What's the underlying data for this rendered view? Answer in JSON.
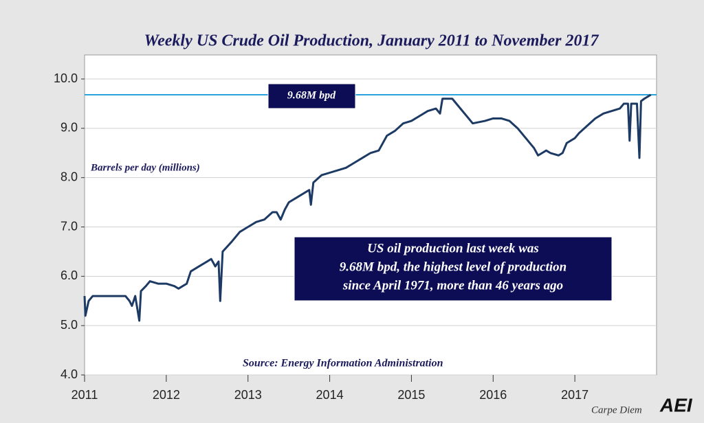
{
  "chart_data": {
    "type": "line",
    "title": "Weekly US Crude Oil Production, January 2011 to November 2017",
    "y_label": "Barrels per day (millions)",
    "source": "Source: Energy Information Administration",
    "reference_line": {
      "value": 9.68,
      "label": "9.68M bpd",
      "color": "#2aa3dc"
    },
    "annotation": [
      "US oil production last week was",
      "9.68M bpd, the highest level of production",
      "since April 1971, more than 46 years ago"
    ],
    "branding": [
      "Carpe Diem",
      "AEI"
    ],
    "xlim": [
      2011,
      2018
    ],
    "xticks": [
      2011,
      2012,
      2013,
      2014,
      2015,
      2016,
      2017
    ],
    "ylim": [
      4,
      10.5
    ],
    "yticks": [
      {
        "value": 4,
        "label": "4.0"
      },
      {
        "value": 5,
        "label": "5.0"
      },
      {
        "value": 6,
        "label": "6.0"
      },
      {
        "value": 7,
        "label": "7.0"
      },
      {
        "value": 8,
        "label": "8.0"
      },
      {
        "value": 9,
        "label": "9.0"
      },
      {
        "value": 10,
        "label": "10.0"
      }
    ],
    "grid": true,
    "x": [
      2011.0,
      2011.01,
      2011.05,
      2011.1,
      2011.2,
      2011.3,
      2011.4,
      2011.5,
      2011.55,
      2011.58,
      2011.62,
      2011.67,
      2011.69,
      2011.75,
      2011.8,
      2011.9,
      2012.0,
      2012.1,
      2012.15,
      2012.2,
      2012.25,
      2012.3,
      2012.4,
      2012.5,
      2012.55,
      2012.6,
      2012.64,
      2012.66,
      2012.69,
      2012.8,
      2012.9,
      2013.0,
      2013.1,
      2013.2,
      2013.3,
      2013.35,
      2013.4,
      2013.45,
      2013.5,
      2013.6,
      2013.75,
      2013.77,
      2013.8,
      2013.9,
      2014.0,
      2014.1,
      2014.2,
      2014.3,
      2014.4,
      2014.5,
      2014.6,
      2014.7,
      2014.8,
      2014.9,
      2015.0,
      2015.1,
      2015.2,
      2015.3,
      2015.35,
      2015.38,
      2015.5,
      2015.6,
      2015.7,
      2015.75,
      2015.9,
      2016.0,
      2016.1,
      2016.2,
      2016.3,
      2016.4,
      2016.45,
      2016.5,
      2016.55,
      2016.6,
      2016.65,
      2016.7,
      2016.8,
      2016.85,
      2016.9,
      2017.0,
      2017.05,
      2017.15,
      2017.25,
      2017.35,
      2017.45,
      2017.55,
      2017.6,
      2017.65,
      2017.67,
      2017.69,
      2017.76,
      2017.79,
      2017.81,
      2017.85,
      2017.93
    ],
    "series": [
      {
        "name": "Weekly US crude oil production",
        "color": "#1c3a63",
        "values": [
          5.6,
          5.2,
          5.5,
          5.6,
          5.6,
          5.6,
          5.6,
          5.6,
          5.5,
          5.4,
          5.6,
          5.1,
          5.7,
          5.8,
          5.9,
          5.85,
          5.85,
          5.8,
          5.75,
          5.8,
          5.85,
          6.1,
          6.2,
          6.3,
          6.35,
          6.2,
          6.3,
          5.5,
          6.5,
          6.7,
          6.9,
          7.0,
          7.1,
          7.15,
          7.3,
          7.3,
          7.15,
          7.35,
          7.5,
          7.6,
          7.75,
          7.45,
          7.9,
          8.05,
          8.1,
          8.15,
          8.2,
          8.3,
          8.4,
          8.5,
          8.55,
          8.85,
          8.95,
          9.1,
          9.15,
          9.25,
          9.35,
          9.4,
          9.3,
          9.6,
          9.6,
          9.4,
          9.2,
          9.1,
          9.15,
          9.2,
          9.2,
          9.15,
          9.0,
          8.8,
          8.7,
          8.6,
          8.45,
          8.5,
          8.55,
          8.5,
          8.45,
          8.5,
          8.7,
          8.8,
          8.9,
          9.05,
          9.2,
          9.3,
          9.35,
          9.4,
          9.5,
          9.5,
          8.75,
          9.5,
          9.5,
          8.4,
          9.55,
          9.6,
          9.68
        ]
      }
    ]
  }
}
